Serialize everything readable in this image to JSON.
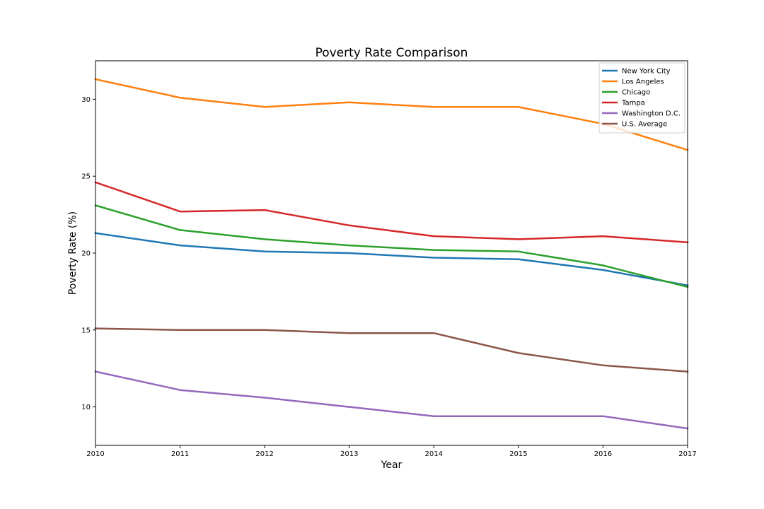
{
  "chart_data": {
    "type": "line",
    "title": "Poverty Rate Comparison",
    "xlabel": "Year",
    "ylabel": "Poverty Rate (%)",
    "x": [
      2010,
      2011,
      2012,
      2013,
      2014,
      2015,
      2016,
      2017
    ],
    "xlim": [
      2010,
      2017
    ],
    "ylim": [
      7.5,
      32.5
    ],
    "yticks": [
      10,
      15,
      20,
      25,
      30
    ],
    "grid": false,
    "legend_position": "top-right",
    "series": [
      {
        "name": "New York City",
        "color": "#1f77b4",
        "values": [
          21.3,
          20.5,
          20.1,
          20.0,
          19.7,
          19.6,
          18.9,
          17.9
        ]
      },
      {
        "name": "Los Angeles",
        "color": "#ff7f0e",
        "values": [
          31.3,
          30.1,
          29.5,
          29.8,
          29.5,
          29.5,
          28.4,
          26.7
        ]
      },
      {
        "name": "Chicago",
        "color": "#2ca02c",
        "values": [
          23.1,
          21.5,
          20.9,
          20.5,
          20.2,
          20.1,
          19.2,
          17.8
        ]
      },
      {
        "name": "Tampa",
        "color": "#d62728",
        "values": [
          24.6,
          22.7,
          22.8,
          21.8,
          21.1,
          20.9,
          21.1,
          20.7
        ]
      },
      {
        "name": "Washington D.C.",
        "color": "#9467bd",
        "values": [
          12.3,
          11.1,
          10.6,
          10.0,
          9.4,
          9.4,
          9.4,
          8.6
        ]
      },
      {
        "name": "U.S. Average",
        "color": "#8c564b",
        "values": [
          15.1,
          15.0,
          15.0,
          14.8,
          14.8,
          13.5,
          12.7,
          12.3
        ]
      }
    ]
  }
}
